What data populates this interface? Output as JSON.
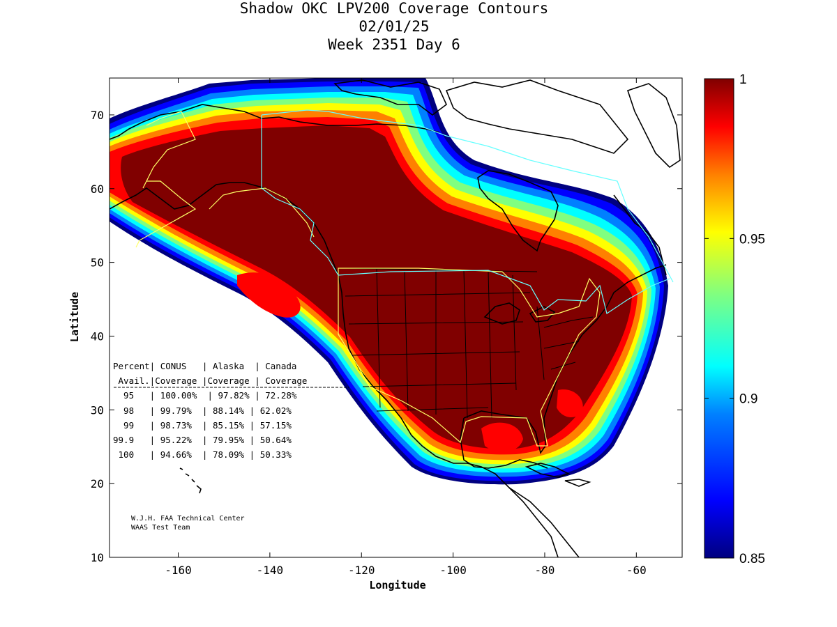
{
  "title": {
    "line1": "Shadow OKC LPV200 Coverage Contours",
    "line2": "02/01/25",
    "line3": "Week 2351 Day 6"
  },
  "axes": {
    "xlabel": "Longitude",
    "ylabel": "Latitude",
    "xlim": [
      -175,
      -50
    ],
    "ylim": [
      10,
      75
    ],
    "xticks": [
      "-160",
      "-140",
      "-120",
      "-100",
      "-80",
      "-60"
    ],
    "yticks": [
      "10",
      "20",
      "30",
      "40",
      "50",
      "60",
      "70"
    ]
  },
  "colorbar": {
    "min": 0.85,
    "max": 1,
    "ticks": [
      "0.85",
      "0.9",
      "0.95",
      "1"
    ],
    "colors": [
      "#000080",
      "#0000ff",
      "#0080ff",
      "#00ffff",
      "#80ff80",
      "#ffff00",
      "#ff8000",
      "#ff0000",
      "#800000"
    ]
  },
  "table": {
    "header1": "Percent| CONUS   | Alaska  | Canada",
    "header2": " Avail.|Coverage |Coverage | Coverage",
    "rule": "-------------------------------------------------",
    "rows": [
      "  95   | 100.00%  | 97.82% | 72.28%",
      "  98   | 99.79%  | 88.14% | 62.02%",
      "  99   | 98.73%  | 85.15% | 57.15%",
      "99.9   | 95.22%  | 79.95% | 50.64%",
      " 100   | 94.66%  | 78.09% | 50.33%"
    ]
  },
  "credit": {
    "line1": "W.J.H. FAA Technical Center",
    "line2": "WAAS Test Team"
  }
}
